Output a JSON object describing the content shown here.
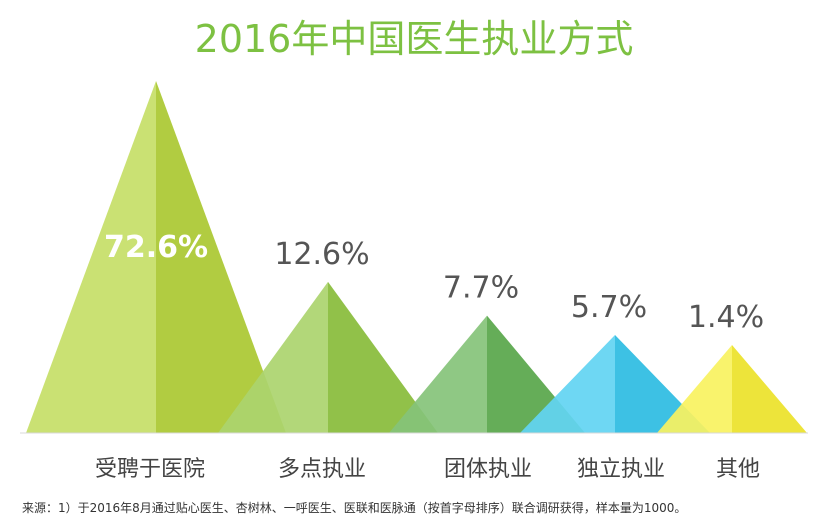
{
  "chart_data": {
    "type": "bar",
    "title": "2016年中国医生执业方式",
    "categories": [
      "受聘于医院",
      "多点执业",
      "团体执业",
      "独立执业",
      "其他"
    ],
    "values": [
      72.6,
      12.6,
      7.7,
      5.7,
      1.4
    ],
    "value_labels": [
      "72.6%",
      "12.6%",
      "7.7%",
      "5.7%",
      "1.4%"
    ],
    "colors": [
      "#b3d334",
      "#8fc63d",
      "#5daf4e",
      "#2ec6ee",
      "#f7ee2b"
    ],
    "ylim": [
      0,
      72.6
    ],
    "grid": false,
    "legend": "none"
  },
  "source_note": "来源：1）于2016年8月通过贴心医生、杏树林、一呼医生、医联和医脉通（按首字母排序）联合调研获得，样本量为1000。"
}
